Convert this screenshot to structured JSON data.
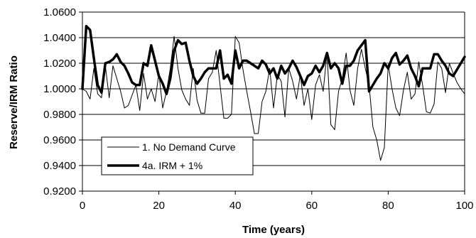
{
  "chart_data": {
    "type": "line",
    "title": "",
    "xlabel": "Time (years)",
    "ylabel": "Reserve/IRM Ratio",
    "xlim": [
      0,
      100
    ],
    "ylim": [
      0.92,
      1.06
    ],
    "x_ticks": [
      "0",
      "20",
      "40",
      "60",
      "80",
      "100"
    ],
    "y_ticks": [
      "0.9200",
      "0.9400",
      "0.9600",
      "0.9800",
      "1.0000",
      "1.0200",
      "1.0400",
      "1.0600"
    ],
    "grid": "horizontal",
    "legend_position": "bottom-left",
    "series": [
      {
        "name": "1. No Demand Curve",
        "style": "thin",
        "color": "#000000",
        "points": [
          [
            0,
            1.0
          ],
          [
            1,
            0.998
          ],
          [
            2,
            0.992
          ],
          [
            3,
            1.016
          ],
          [
            4,
            0.996
          ],
          [
            5,
            0.993
          ],
          [
            6,
            1.018
          ],
          [
            7,
            0.993
          ],
          [
            8,
            1.018
          ],
          [
            9,
            1.008
          ],
          [
            10,
            0.998
          ],
          [
            11,
            0.985
          ],
          [
            12,
            0.987
          ],
          [
            13,
            0.995
          ],
          [
            14,
            1.003
          ],
          [
            15,
            0.983
          ],
          [
            16,
            1.012
          ],
          [
            17,
            0.992
          ],
          [
            18,
            1.0
          ],
          [
            19,
            0.99
          ],
          [
            20,
            1.012
          ],
          [
            21,
            0.985
          ],
          [
            22,
            0.998
          ],
          [
            23,
            1.016
          ],
          [
            24,
            1.041
          ],
          [
            25,
            1.016
          ],
          [
            26,
            0.999
          ],
          [
            27,
            0.992
          ],
          [
            28,
            0.987
          ],
          [
            29,
            1.016
          ],
          [
            30,
            0.991
          ],
          [
            31,
            0.981
          ],
          [
            32,
            0.981
          ],
          [
            33,
            1.008
          ],
          [
            34,
            1.013
          ],
          [
            35,
            1.03
          ],
          [
            36,
            1.003
          ],
          [
            37,
            0.977
          ],
          [
            38,
            0.977
          ],
          [
            39,
            0.98
          ],
          [
            40,
            1.041
          ],
          [
            41,
            1.036
          ],
          [
            42,
            1.015
          ],
          [
            43,
            0.998
          ],
          [
            44,
            0.982
          ],
          [
            45,
            0.965
          ],
          [
            46,
            0.965
          ],
          [
            47,
            0.99
          ],
          [
            48,
            0.998
          ],
          [
            49,
            1.016
          ],
          [
            50,
            0.985
          ],
          [
            51,
            1.011
          ],
          [
            52,
            1.006
          ],
          [
            53,
            0.978
          ],
          [
            54,
            1.016
          ],
          [
            55,
            1.006
          ],
          [
            56,
            0.992
          ],
          [
            57,
            1.011
          ],
          [
            58,
            0.987
          ],
          [
            59,
            1.0
          ],
          [
            60,
            0.976
          ],
          [
            61,
            1.003
          ],
          [
            62,
            1.011
          ],
          [
            63,
            0.998
          ],
          [
            64,
            1.028
          ],
          [
            65,
            0.972
          ],
          [
            66,
            0.968
          ],
          [
            67,
            0.998
          ],
          [
            68,
            1.008
          ],
          [
            69,
            1.028
          ],
          [
            70,
            0.999
          ],
          [
            71,
            0.987
          ],
          [
            72,
            1.016
          ],
          [
            73,
            1.031
          ],
          [
            74,
            1.016
          ],
          [
            75,
            1.003
          ],
          [
            76,
            0.97
          ],
          [
            77,
            0.96
          ],
          [
            78,
            0.944
          ],
          [
            79,
            0.954
          ],
          [
            80,
            1.019
          ],
          [
            81,
            1.0
          ],
          [
            82,
            0.985
          ],
          [
            83,
            0.979
          ],
          [
            84,
            0.999
          ],
          [
            85,
            1.013
          ],
          [
            86,
            0.992
          ],
          [
            87,
            0.996
          ],
          [
            88,
            1.021
          ],
          [
            89,
            1.003
          ],
          [
            90,
            0.982
          ],
          [
            91,
            0.981
          ],
          [
            92,
            0.988
          ],
          [
            93,
            1.021
          ],
          [
            94,
            1.016
          ],
          [
            95,
            0.997
          ],
          [
            96,
            1.02
          ],
          [
            97,
            1.012
          ],
          [
            98,
            1.005
          ],
          [
            99,
            1.0
          ],
          [
            100,
            0.996
          ]
        ]
      },
      {
        "name": "4a. IRM + 1%",
        "style": "thick",
        "color": "#000000",
        "points": [
          [
            0,
            1.0
          ],
          [
            1,
            1.049
          ],
          [
            2,
            1.046
          ],
          [
            3,
            1.024
          ],
          [
            4,
            1.003
          ],
          [
            5,
            0.997
          ],
          [
            6,
            1.02
          ],
          [
            7,
            1.021
          ],
          [
            8,
            1.023
          ],
          [
            9,
            1.027
          ],
          [
            10,
            1.021
          ],
          [
            11,
            1.018
          ],
          [
            12,
            1.012
          ],
          [
            13,
            1.005
          ],
          [
            14,
            1.003
          ],
          [
            15,
            1.003
          ],
          [
            16,
            1.02
          ],
          [
            17,
            1.018
          ],
          [
            18,
            1.034
          ],
          [
            19,
            1.022
          ],
          [
            20,
            1.01
          ],
          [
            21,
            1.004
          ],
          [
            22,
            0.996
          ],
          [
            23,
            1.008
          ],
          [
            24,
            1.03
          ],
          [
            25,
            1.038
          ],
          [
            26,
            1.035
          ],
          [
            27,
            1.036
          ],
          [
            28,
            1.022
          ],
          [
            29,
            1.01
          ],
          [
            30,
            1.004
          ],
          [
            31,
            1.008
          ],
          [
            32,
            1.013
          ],
          [
            33,
            1.016
          ],
          [
            34,
            1.016
          ],
          [
            35,
            1.016
          ],
          [
            36,
            1.03
          ],
          [
            37,
            1.008
          ],
          [
            38,
            1.011
          ],
          [
            39,
            1.004
          ],
          [
            40,
            1.03
          ],
          [
            41,
            1.016
          ],
          [
            42,
            1.022
          ],
          [
            43,
            1.022
          ],
          [
            44,
            1.02
          ],
          [
            45,
            1.018
          ],
          [
            46,
            1.016
          ],
          [
            47,
            1.022
          ],
          [
            48,
            1.019
          ],
          [
            49,
            1.012
          ],
          [
            50,
            1.016
          ],
          [
            51,
            1.008
          ],
          [
            52,
            1.018
          ],
          [
            53,
            1.012
          ],
          [
            54,
            1.016
          ],
          [
            55,
            1.022
          ],
          [
            56,
            1.017
          ],
          [
            57,
            1.01
          ],
          [
            58,
            1.003
          ],
          [
            59,
            1.01
          ],
          [
            60,
            1.012
          ],
          [
            61,
            1.018
          ],
          [
            62,
            1.013
          ],
          [
            63,
            1.018
          ],
          [
            64,
            1.028
          ],
          [
            65,
            1.016
          ],
          [
            66,
            1.02
          ],
          [
            67,
            1.016
          ],
          [
            68,
            1.004
          ],
          [
            69,
            1.018
          ],
          [
            70,
            1.018
          ],
          [
            71,
            1.022
          ],
          [
            72,
            1.03
          ],
          [
            73,
            1.034
          ],
          [
            74,
            1.038
          ],
          [
            75,
            0.998
          ],
          [
            76,
            1.003
          ],
          [
            77,
            1.008
          ],
          [
            78,
            1.012
          ],
          [
            79,
            1.02
          ],
          [
            80,
            1.016
          ],
          [
            81,
            1.024
          ],
          [
            82,
            1.028
          ],
          [
            83,
            1.019
          ],
          [
            84,
            1.022
          ],
          [
            85,
            1.026
          ],
          [
            86,
            1.016
          ],
          [
            87,
            1.01
          ],
          [
            88,
            1.002
          ],
          [
            89,
            1.016
          ],
          [
            90,
            1.016
          ],
          [
            91,
            1.016
          ],
          [
            92,
            1.027
          ],
          [
            93,
            1.027
          ],
          [
            94,
            1.022
          ],
          [
            95,
            1.018
          ],
          [
            96,
            1.012
          ],
          [
            97,
            1.01
          ],
          [
            98,
            1.015
          ],
          [
            99,
            1.02
          ],
          [
            100,
            1.025
          ]
        ]
      }
    ]
  }
}
